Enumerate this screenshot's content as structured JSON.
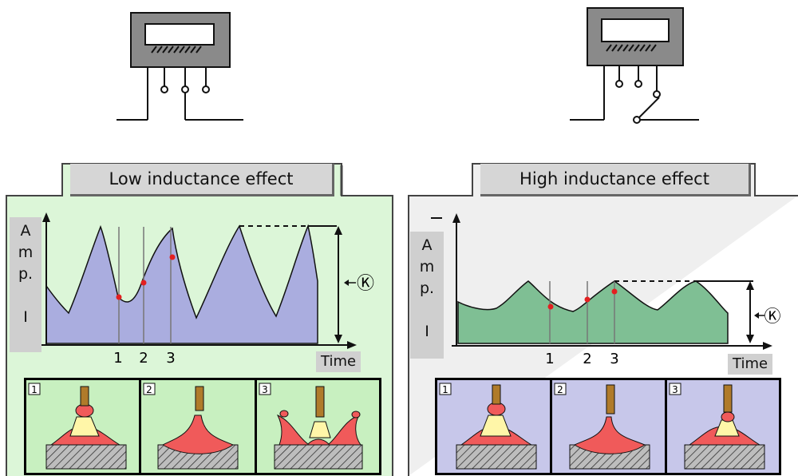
{
  "left": {
    "title": "Low inductance effect",
    "ylabel": [
      "A",
      "m",
      "p.",
      "",
      "I"
    ],
    "xlabel": "Time",
    "markers": [
      "1",
      "2",
      "3"
    ],
    "k_symbol": "Ⓚ",
    "steps": [
      "1",
      "2",
      "3"
    ],
    "colors": {
      "panel": "#dcf6d8",
      "curve_fill": "#aaaddf",
      "step_bg": "#c8f0c0"
    }
  },
  "right": {
    "title": "High inductance effect",
    "ylabel": [
      "A",
      "m",
      "p.",
      "",
      "I"
    ],
    "xlabel": "Time",
    "markers": [
      "1",
      "2",
      "3"
    ],
    "k_symbol": "Ⓚ",
    "steps": [
      "1",
      "2",
      "3"
    ],
    "colors": {
      "panel": "#efefef",
      "curve_fill": "#7fbf94",
      "step_bg": "#c7c7ea"
    }
  }
}
